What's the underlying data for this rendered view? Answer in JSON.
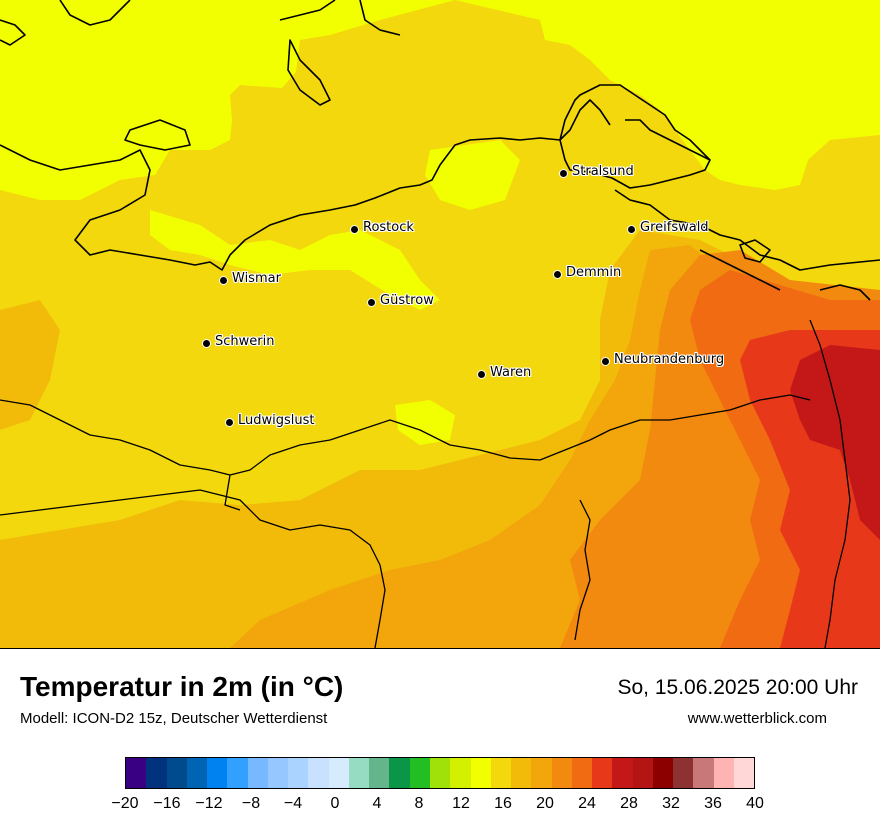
{
  "title": "Temperatur in 2m (in °C)",
  "subtitle": "Modell: ICON-D2 15z, Deutscher Wetterdienst",
  "datetime": "So, 15.06.2025 20:00 Uhr",
  "website": "www.wetterblick.com",
  "cities": [
    {
      "name": "Stralsund"
    },
    {
      "name": "Rostock"
    },
    {
      "name": "Greifswald"
    },
    {
      "name": "Wismar"
    },
    {
      "name": "Demmin"
    },
    {
      "name": "Güstrow"
    },
    {
      "name": "Schwerin"
    },
    {
      "name": "Neubrandenburg"
    },
    {
      "name": "Waren"
    },
    {
      "name": "Ludwigslust"
    }
  ],
  "temperature_zones": {
    "14-16": "#f2ff00",
    "16-18": "#f2d80d",
    "18-20": "#f2bb0a",
    "20-22": "#f2a60b",
    "22-24": "#f28a0f",
    "24-26": "#f06b12",
    "26-28": "#e8381a",
    "28-30": "#c41818"
  },
  "legend": {
    "colors": [
      "#3a0084",
      "#00327d",
      "#004b8c",
      "#0064b4",
      "#0082f0",
      "#32a0ff",
      "#78b8ff",
      "#96c8ff",
      "#aad4ff",
      "#c8e1ff",
      "#d7ebff",
      "#96dcc3",
      "#64b48c",
      "#0a9646",
      "#23be23",
      "#a0e10a",
      "#d2f000",
      "#f2ff00",
      "#f2d80d",
      "#f2bb0a",
      "#f2a60b",
      "#f28a0f",
      "#f06b12",
      "#e8381a",
      "#c41818",
      "#b41414",
      "#8c0000",
      "#8c3232",
      "#c87878",
      "#ffb4b4",
      "#ffd7d7"
    ],
    "ticks": [
      "−20",
      "−16",
      "−12",
      "−8",
      "−4",
      "0",
      "4",
      "8",
      "12",
      "16",
      "20",
      "24",
      "28",
      "32",
      "36",
      "40"
    ]
  }
}
